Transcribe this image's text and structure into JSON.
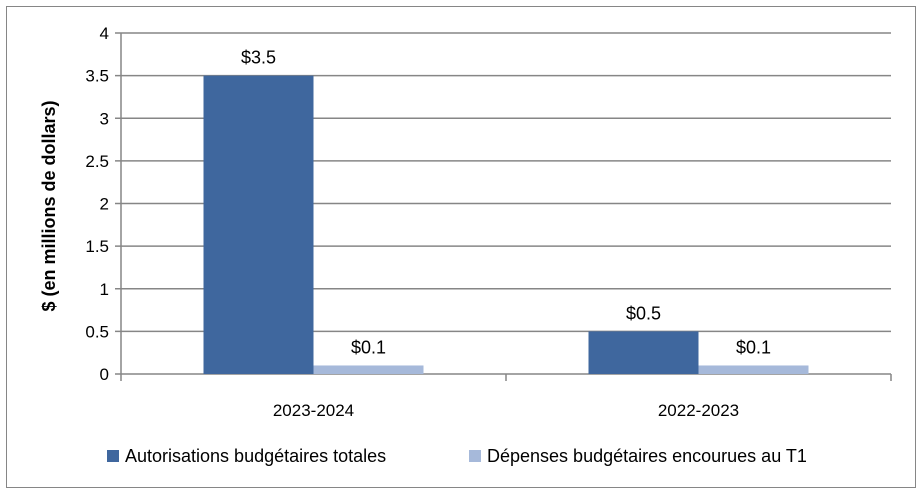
{
  "chart_data": {
    "type": "bar",
    "categories": [
      "2023-2024",
      "2022-2023"
    ],
    "series": [
      {
        "name": "Autorisations budgétaires totales",
        "values": [
          3.5,
          0.5
        ],
        "labels": [
          "$3.5",
          "$0.5"
        ],
        "color": "#3F679E"
      },
      {
        "name": "Dépenses budgétaires encourues au T1",
        "values": [
          0.1,
          0.1
        ],
        "labels": [
          "$0.1",
          "$0.1"
        ],
        "color": "#A6B9DA"
      }
    ],
    "ylabel": "$ (en millions de dollars)",
    "xlabel": "",
    "ylim": [
      0,
      4
    ],
    "yticks": [
      0,
      0.5,
      1,
      1.5,
      2,
      2.5,
      3,
      3.5,
      4
    ],
    "ytick_labels": [
      "0",
      "0.5",
      "1",
      "1.5",
      "2",
      "2.5",
      "3",
      "3.5",
      "4"
    ],
    "grid": true,
    "legend_position": "bottom"
  }
}
